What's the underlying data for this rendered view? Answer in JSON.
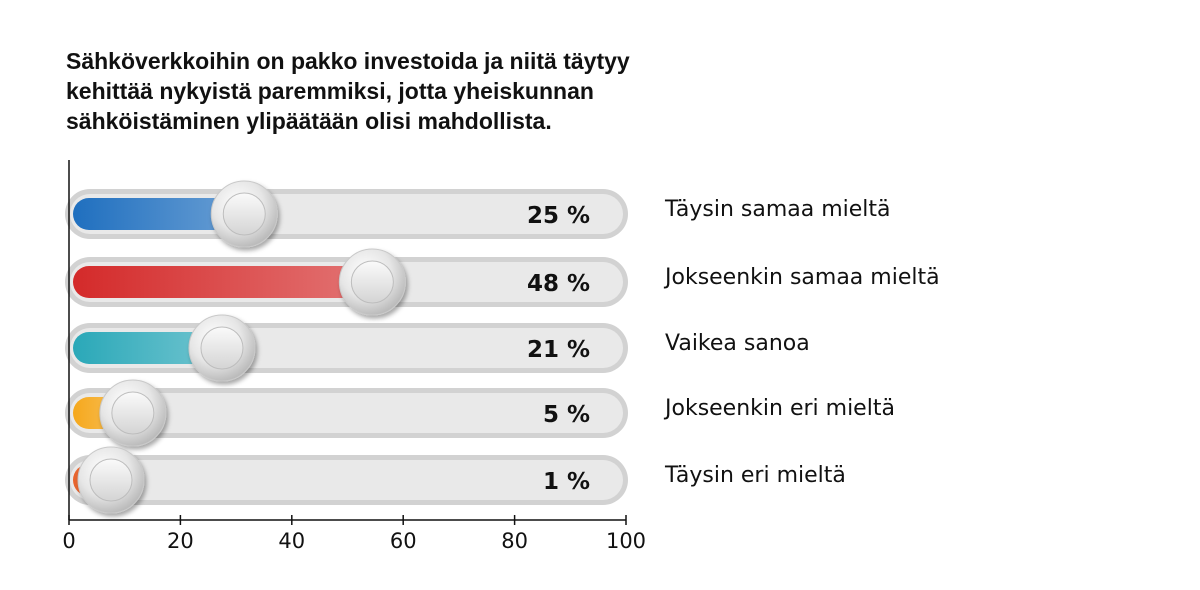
{
  "title_lines": [
    "Sähköverkkoihin on pakko investoida ja niitä täytyy",
    "kehittää nykyistä paremmiksi, jotta yheiskunnan",
    "sähköistäminen ylipäätään olisi mahdollista."
  ],
  "chart_data": {
    "type": "bar",
    "orientation": "horizontal",
    "title": "Sähköverkkoihin on pakko investoida ja niitä täytyy kehittää nykyistä paremmiksi, jotta yheiskunnan sähköistäminen ylipäätään olisi mahdollista.",
    "categories": [
      "Täysin samaa mieltä",
      "Jokseenkin samaa mieltä",
      "Vaikea sanoa",
      "Jokseenkin eri mieltä",
      "Täysin eri mieltä"
    ],
    "values": [
      25,
      48,
      21,
      5,
      1
    ],
    "value_labels": [
      "25 %",
      "48 %",
      "21 %",
      "5 %",
      "1 %"
    ],
    "colors": [
      "#1f6fbf",
      "#d42a2a",
      "#2aa8b8",
      "#f5a81c",
      "#e8622a"
    ],
    "xlim": [
      0,
      100
    ],
    "xticks": [
      0,
      20,
      40,
      60,
      80,
      100
    ],
    "xtick_labels": [
      "0",
      "20",
      "40",
      "60",
      "80",
      "100"
    ],
    "grid": false,
    "legend": "right"
  }
}
